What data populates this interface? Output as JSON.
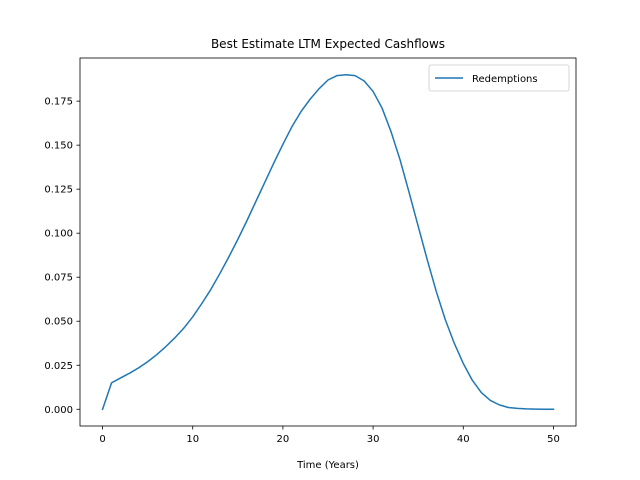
{
  "chart_data": {
    "type": "line",
    "title": "Best Estimate LTM Expected Cashflows",
    "xlabel": "Time (Years)",
    "ylabel": "",
    "xlim": [
      -2.5,
      52.5
    ],
    "ylim": [
      -0.0095,
      0.1995
    ],
    "xticks": [
      0,
      10,
      20,
      30,
      40,
      50
    ],
    "xtick_labels": [
      "0",
      "10",
      "20",
      "30",
      "40",
      "50"
    ],
    "yticks": [
      0.0,
      0.025,
      0.05,
      0.075,
      0.1,
      0.125,
      0.15,
      0.175
    ],
    "ytick_labels": [
      "0.000",
      "0.025",
      "0.050",
      "0.075",
      "0.100",
      "0.125",
      "0.150",
      "0.175"
    ],
    "grid": false,
    "legend_position": "top-right",
    "series": [
      {
        "name": "Redemptions",
        "color": "#1f77b4",
        "x": [
          0,
          1,
          2,
          3,
          4,
          5,
          6,
          7,
          8,
          9,
          10,
          11,
          12,
          13,
          14,
          15,
          16,
          17,
          18,
          19,
          20,
          21,
          22,
          23,
          24,
          25,
          26,
          27,
          28,
          29,
          30,
          31,
          32,
          33,
          34,
          35,
          36,
          37,
          38,
          39,
          40,
          41,
          42,
          43,
          44,
          45,
          46,
          47,
          48,
          49,
          50
        ],
        "y": [
          0.0,
          0.015,
          0.0178,
          0.0205,
          0.0235,
          0.027,
          0.031,
          0.0355,
          0.0405,
          0.046,
          0.0525,
          0.06,
          0.068,
          0.077,
          0.0865,
          0.0965,
          0.107,
          0.118,
          0.129,
          0.14,
          0.1505,
          0.1605,
          0.169,
          0.176,
          0.182,
          0.187,
          0.1895,
          0.19,
          0.1895,
          0.1865,
          0.1805,
          0.171,
          0.1575,
          0.1415,
          0.123,
          0.104,
          0.085,
          0.067,
          0.051,
          0.0375,
          0.026,
          0.0165,
          0.0095,
          0.005,
          0.0025,
          0.001,
          0.0005,
          0.0002,
          0.0001,
          0.0,
          0.0
        ]
      }
    ]
  }
}
